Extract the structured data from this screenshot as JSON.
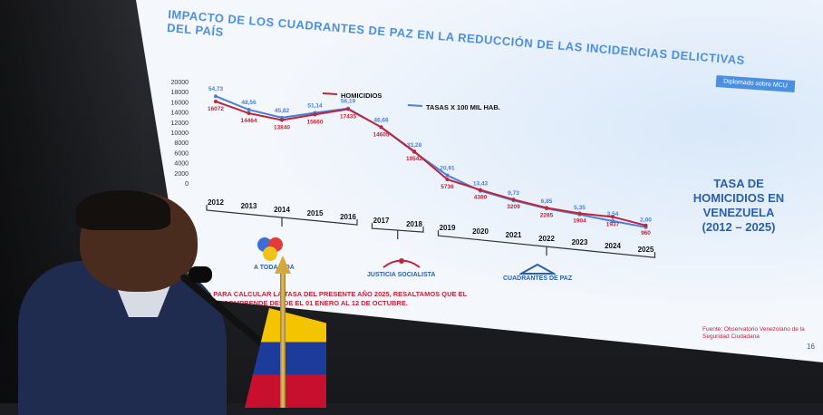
{
  "slide": {
    "title": "IMPACTO DE LOS CUADRANTES DE PAZ EN LA REDUCCIÓN DE LAS INCIDENCIAS DELICTIVAS DEL PAÍS",
    "badge": "Diplomado sobre MCU",
    "heading_lines": [
      "TASA DE",
      "HOMICIDIOS EN",
      "VENEZUELA",
      "(2012 – 2025)"
    ],
    "note": "NOTA: PARA CALCULAR LA TASA DEL PRESENTE AÑO 2025, RESALTAMOS QUE EL PERIODO COMPRENDE DESDE EL 01 ENERO AL 12 DE OCTUBRE.",
    "source": "Fuente: Observatorio Venezolano de la Seguridad Ciudadana",
    "page_number": "16",
    "logos": [
      "A TODA VIDA",
      "JUSTICIA SOCIALISTA",
      "CUADRANTES DE PAZ"
    ]
  },
  "colors": {
    "homicides": "#c0243a",
    "rate": "#4a7fd6",
    "title": "#4a8fe0"
  },
  "chart_data": {
    "type": "line",
    "x": [
      "2012",
      "2013",
      "2014",
      "2015",
      "2016",
      "2017",
      "2018",
      "2019",
      "2020",
      "2021",
      "2022",
      "2023",
      "2024",
      "2025"
    ],
    "series": [
      {
        "name": "HOMICIDIOS",
        "values": [
          16072,
          14464,
          13840,
          15660,
          17435,
          14605,
          10542,
          5736,
          4380,
          3209,
          2285,
          1904,
          1937,
          960
        ],
        "labels": [
          "16072",
          "14464",
          "13840",
          "15660",
          "17435",
          "14605",
          "10542",
          "5736",
          "4380",
          "3209",
          "2285",
          "1904",
          "1937",
          "960"
        ]
      },
      {
        "name": "TASAS X 100 MIL HAB.",
        "values": [
          54.73,
          48.56,
          45.82,
          51.14,
          56.19,
          46.66,
          33.28,
          20.91,
          13.43,
          9.73,
          6.85,
          5.35,
          3.54,
          2.0
        ],
        "labels": [
          "54,73",
          "48,56",
          "45,82",
          "51,14",
          "56,19",
          "46,66",
          "33,28",
          "20,91",
          "13,43",
          "9,73",
          "6,85",
          "5,35",
          "3,54",
          "2,00"
        ]
      }
    ],
    "y_ticks": [
      "20000",
      "18000",
      "16000",
      "14000",
      "12000",
      "10000",
      "8000",
      "6000",
      "4000",
      "2000",
      "0"
    ],
    "ylim": [
      0,
      20000
    ],
    "grid": false,
    "legend": "top"
  }
}
